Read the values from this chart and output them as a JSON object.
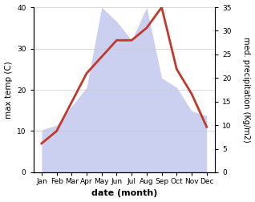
{
  "months": [
    "Jan",
    "Feb",
    "Mar",
    "Apr",
    "May",
    "Jun",
    "Jul",
    "Aug",
    "Sep",
    "Oct",
    "Nov",
    "Dec"
  ],
  "temp": [
    7,
    10,
    17,
    24,
    28,
    32,
    32,
    35,
    40,
    25,
    19,
    11
  ],
  "precip": [
    9,
    10,
    14,
    18,
    35,
    32,
    28,
    35,
    20,
    18,
    13,
    12
  ],
  "temp_color": "#c0392b",
  "precip_color": "#b0b8e8",
  "ylabel_left": "max temp (C)",
  "ylabel_right": "med. precipitation (Kg/m2)",
  "xlabel": "date (month)",
  "ylim_left": [
    0,
    40
  ],
  "ylim_right": [
    0,
    35
  ],
  "yticks_left": [
    0,
    10,
    20,
    30,
    40
  ],
  "yticks_right": [
    0,
    5,
    10,
    15,
    20,
    25,
    30,
    35
  ],
  "bg_color": "#ffffff",
  "line_width": 2.0,
  "figsize": [
    3.18,
    2.52
  ],
  "dpi": 100
}
